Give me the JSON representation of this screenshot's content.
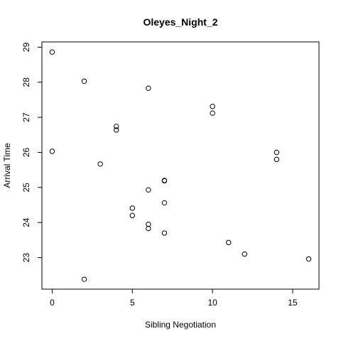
{
  "chart_data": {
    "type": "scatter",
    "title": "Oleyes_Night_2",
    "xlabel": "Sibling Negotiation",
    "ylabel": "Arrival Time",
    "xlim": [
      -0.64,
      16.64
    ],
    "ylim": [
      22.1,
      29.15
    ],
    "xticks": [
      0,
      5,
      10,
      15
    ],
    "yticks": [
      23,
      24,
      25,
      26,
      27,
      28,
      29
    ],
    "grid": false,
    "points": [
      {
        "x": 0,
        "y": 28.86
      },
      {
        "x": 0,
        "y": 26.03
      },
      {
        "x": 2,
        "y": 28.03
      },
      {
        "x": 2,
        "y": 22.38
      },
      {
        "x": 3,
        "y": 25.67
      },
      {
        "x": 4,
        "y": 26.74
      },
      {
        "x": 4,
        "y": 26.64
      },
      {
        "x": 5,
        "y": 24.41
      },
      {
        "x": 5,
        "y": 24.2
      },
      {
        "x": 6,
        "y": 27.83
      },
      {
        "x": 6,
        "y": 24.93
      },
      {
        "x": 6,
        "y": 23.95
      },
      {
        "x": 6,
        "y": 23.83
      },
      {
        "x": 7,
        "y": 25.2
      },
      {
        "x": 7,
        "y": 25.19
      },
      {
        "x": 7,
        "y": 24.56
      },
      {
        "x": 7,
        "y": 23.7
      },
      {
        "x": 10,
        "y": 27.31
      },
      {
        "x": 10,
        "y": 27.12
      },
      {
        "x": 11,
        "y": 23.43
      },
      {
        "x": 12,
        "y": 23.1
      },
      {
        "x": 14,
        "y": 26.0
      },
      {
        "x": 14,
        "y": 25.8
      },
      {
        "x": 16,
        "y": 22.96
      }
    ]
  }
}
